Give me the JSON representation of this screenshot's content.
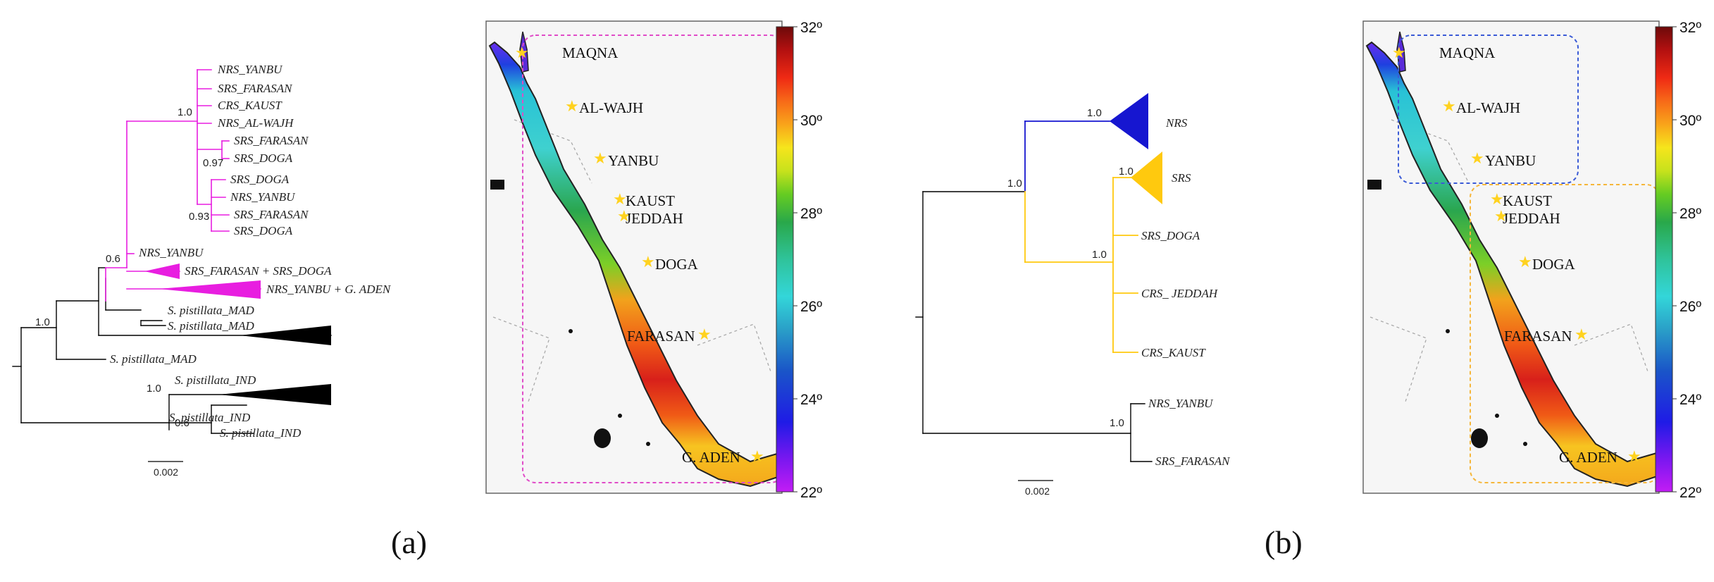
{
  "colors": {
    "nrs": "#1616d0",
    "srs": "#ffc90e",
    "clade_a": "#e81ee0",
    "black": "#000000",
    "box_a": "#e04cc8",
    "box_b_blue": "#3b5bd6",
    "box_b_orange": "#f5b63a",
    "star": "#ffd21f"
  },
  "panel_a": {
    "label": "(a)",
    "scale_bar": "0.002",
    "supports": [
      "1.0",
      "0.97",
      "0.93",
      "0.6",
      "1.0",
      "1.0",
      "0.6"
    ],
    "tips": [
      "NRS_YANBU",
      "SRS_FARASAN",
      "CRS_KAUST",
      "NRS_AL-WAJH",
      "SRS_FARASAN",
      "SRS_DOGA",
      "SRS_DOGA",
      "NRS_YANBU",
      "SRS_FARASAN",
      "SRS_DOGA",
      "NRS_YANBU",
      "SRS_FARASAN + SRS_DOGA",
      "NRS_YANBU + G. ADEN",
      "S. pistillata_MAD",
      "S. pistillata_MAD",
      "S. pistillata_MAD",
      "S. pistillata_IND",
      "S. pistillata_IND",
      "S. pistillata_IND"
    ]
  },
  "panel_b": {
    "label": "(b)",
    "scale_bar": "0.002",
    "supports": [
      "1.0",
      "1.0",
      "1.0",
      "1.0",
      "1.0"
    ],
    "tips": [
      "NRS",
      "SRS",
      "SRS_DOGA",
      "CRS_ JEDDAH",
      "CRS_KAUST",
      "NRS_YANBU",
      "SRS_FARASAN"
    ]
  },
  "map": {
    "sites": [
      "MAQNA",
      "AL-WAJH",
      "YANBU",
      "KAUST",
      "JEDDAH",
      "DOGA",
      "FARASAN",
      "G. ADEN"
    ],
    "colorbar_ticks": [
      "32º",
      "30º",
      "28º",
      "26º",
      "24º",
      "22º"
    ]
  }
}
